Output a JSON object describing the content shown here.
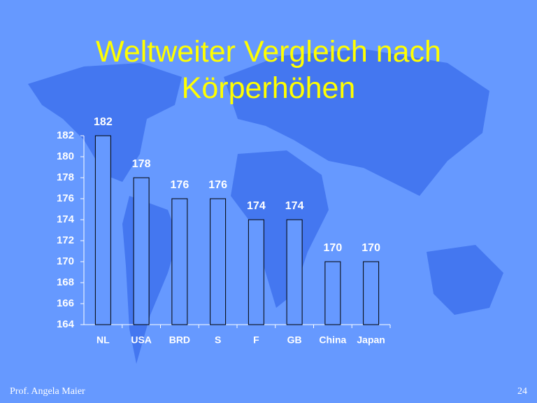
{
  "chart_data": {
    "type": "bar",
    "title": "Weltweiter Vergleich nach Körperhöhen",
    "categories": [
      "NL",
      "USA",
      "BRD",
      "S",
      "F",
      "GB",
      "China",
      "Japan"
    ],
    "values": [
      182,
      178,
      176,
      176,
      174,
      174,
      170,
      170
    ],
    "color": "#6699ff",
    "ylim": [
      164,
      182
    ],
    "yticks": [
      164,
      166,
      168,
      170,
      172,
      174,
      176,
      178,
      180,
      182
    ]
  },
  "footer": {
    "author": "Prof. Angela Maier",
    "page": "24"
  }
}
